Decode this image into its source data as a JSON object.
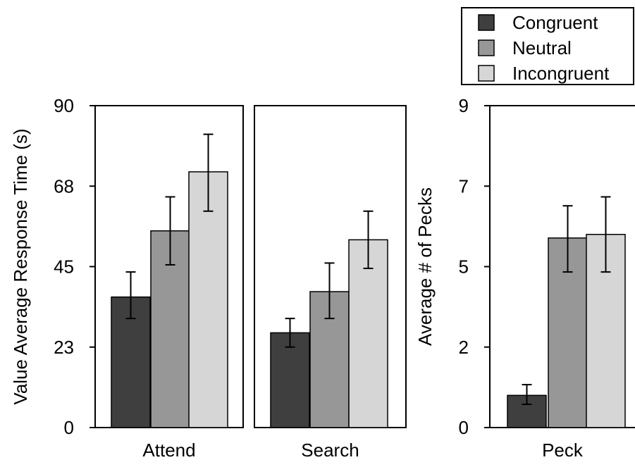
{
  "chart_data": [
    {
      "type": "bar",
      "panel": "Attend",
      "ylabel": "Value Average Response Time (s)",
      "yticks": [
        "0",
        "23",
        "45",
        "68",
        "90"
      ],
      "ylim": [
        0,
        90
      ],
      "categories": [
        "Congruent",
        "Neutral",
        "Incongruent"
      ],
      "values": [
        36.5,
        55,
        71.5
      ],
      "error_low": [
        30.5,
        45.5,
        60.5
      ],
      "error_high": [
        43.5,
        64.5,
        82
      ]
    },
    {
      "type": "bar",
      "panel": "Search",
      "ylabel": "",
      "ylim": [
        0,
        90
      ],
      "categories": [
        "Congruent",
        "Neutral",
        "Incongruent"
      ],
      "values": [
        26.5,
        38,
        52.5
      ],
      "error_low": [
        22.5,
        30.5,
        44.5
      ],
      "error_high": [
        30.5,
        46,
        60.5
      ]
    },
    {
      "type": "bar",
      "panel": "Peck",
      "ylabel": "Average # of Pecks",
      "yticks": [
        "0",
        "2",
        "5",
        "7",
        "9"
      ],
      "ylim": [
        0,
        9
      ],
      "categories": [
        "Congruent",
        "Neutral",
        "Incongruent"
      ],
      "values": [
        0.9,
        5.3,
        5.4
      ],
      "error_low": [
        0.65,
        4.35,
        4.35
      ],
      "error_high": [
        1.2,
        6.2,
        6.45
      ]
    }
  ],
  "legend": {
    "position": "top-right",
    "entries": [
      {
        "label": "Congruent",
        "color": "#3f3f3f"
      },
      {
        "label": "Neutral",
        "color": "#979797"
      },
      {
        "label": "Incongruent",
        "color": "#d6d6d6"
      }
    ]
  }
}
